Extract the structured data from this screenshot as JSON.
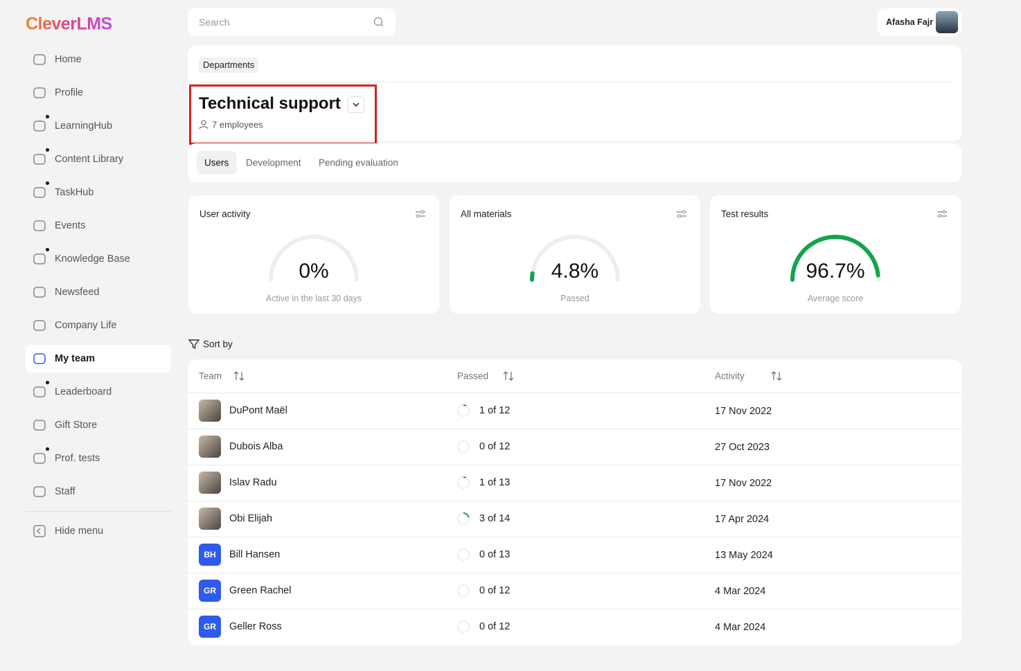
{
  "sidebar": {
    "logo": "CleverLMS",
    "items": [
      "Home",
      "Profile",
      "LearningHub",
      "Content Library",
      "TaskHub",
      "Events",
      "Knowledge Base",
      "Newsfeed",
      "Company Life",
      "My team",
      "Leaderboard",
      "Gift Store",
      "Prof. tests",
      "Staff"
    ],
    "hide_menu": "Hide menu"
  },
  "search": {
    "placeholder": "Search"
  },
  "user": {
    "name": "Afasha Fajr"
  },
  "header": {
    "breadcrumb": "Departments",
    "title": "Technical support",
    "subtitle": "7 employees"
  },
  "tabs": [
    "Users",
    "Development",
    "Pending evaluation"
  ],
  "stats": [
    {
      "title": "User activity",
      "value": "0%",
      "caption": "Active in the last 30 days"
    },
    {
      "title": "All materials",
      "value": "4.8%",
      "caption": "Passed"
    },
    {
      "title": "Test results",
      "value": "96.7%",
      "caption": "Average score"
    }
  ],
  "sort_label": "Sort by",
  "table": {
    "columns": [
      "Team",
      "Passed",
      "Activity"
    ],
    "rows": [
      {
        "name": "DuPont Maël",
        "passed": "1 of 12",
        "activity": "17 Nov 2022"
      },
      {
        "name": "Dubois Alba",
        "passed": "0 of 12",
        "activity": "27 Oct 2023"
      },
      {
        "name": "Islav Radu",
        "passed": "1 of 13",
        "activity": "17 Nov 2022"
      },
      {
        "name": "Obi Elijah",
        "passed": "3 of 14",
        "activity": "17 Apr 2024"
      },
      {
        "initials": "BH",
        "name": "Bill Hansen",
        "passed": "0 of 13",
        "activity": "13 May 2024"
      },
      {
        "initials": "GR",
        "name": "Green Rachel",
        "passed": "0 of 12",
        "activity": "4 Mar 2024"
      },
      {
        "initials": "GR",
        "name": "Geller Ross",
        "passed": "0 of 12",
        "activity": "4 Mar 2024"
      }
    ]
  }
}
